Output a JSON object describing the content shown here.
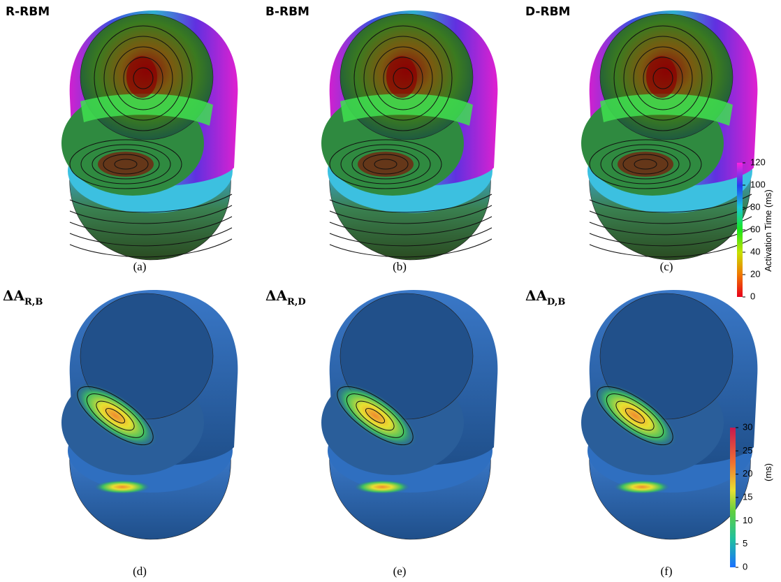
{
  "panels": [
    {
      "title": "R-RBM",
      "caption": "(a)"
    },
    {
      "title": "B-RBM",
      "caption": "(b)"
    },
    {
      "title": "D-RBM",
      "caption": "(c)"
    },
    {
      "title": {
        "main": "ΔA",
        "sub": "R,B"
      },
      "caption": "(d)"
    },
    {
      "title": {
        "main": "ΔA",
        "sub": "R,D"
      },
      "caption": "(e)"
    },
    {
      "title": {
        "main": "ΔA",
        "sub": "D,B"
      },
      "caption": "(f)"
    }
  ],
  "colorbars": [
    {
      "label": "Activation Time (ms)",
      "ticks": [
        0,
        20,
        40,
        60,
        80,
        100,
        120
      ]
    },
    {
      "label": "(ms)",
      "ticks": [
        0,
        5,
        10,
        15,
        20,
        25,
        30
      ]
    }
  ]
}
